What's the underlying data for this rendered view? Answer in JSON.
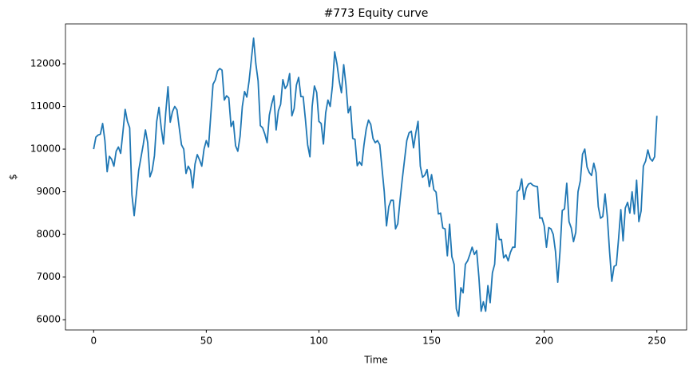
{
  "chart_data": {
    "type": "line",
    "title": "#773 Equity curve",
    "x_label": "Time",
    "y_label": "$",
    "color": "#1f77b4",
    "xlim": [
      -12.5,
      263.2
    ],
    "ylim": [
      5760,
      12935
    ],
    "xticks": [
      0,
      50,
      100,
      150,
      200,
      250
    ],
    "yticks": [
      6000,
      7000,
      8000,
      9000,
      10000,
      11000,
      12000
    ],
    "grid": false,
    "x": [
      0,
      1,
      2,
      3,
      4,
      5,
      6,
      7,
      8,
      9,
      10,
      11,
      12,
      13,
      14,
      15,
      16,
      17,
      18,
      19,
      20,
      21,
      22,
      23,
      24,
      25,
      26,
      27,
      28,
      29,
      30,
      31,
      32,
      33,
      34,
      35,
      36,
      37,
      38,
      39,
      40,
      41,
      42,
      43,
      44,
      45,
      46,
      47,
      48,
      49,
      50,
      51,
      52,
      53,
      54,
      55,
      56,
      57,
      58,
      59,
      60,
      61,
      62,
      63,
      64,
      65,
      66,
      67,
      68,
      69,
      70,
      71,
      72,
      73,
      74,
      75,
      76,
      77,
      78,
      79,
      80,
      81,
      82,
      83,
      84,
      85,
      86,
      87,
      88,
      89,
      90,
      91,
      92,
      93,
      94,
      95,
      96,
      97,
      98,
      99,
      100,
      101,
      102,
      103,
      104,
      105,
      106,
      107,
      108,
      109,
      110,
      111,
      112,
      113,
      114,
      115,
      116,
      117,
      118,
      119,
      120,
      121,
      122,
      123,
      124,
      125,
      126,
      127,
      128,
      129,
      130,
      131,
      132,
      133,
      134,
      135,
      136,
      137,
      138,
      139,
      140,
      141,
      142,
      143,
      144,
      145,
      146,
      147,
      148,
      149,
      150,
      151,
      152,
      153,
      154,
      155,
      156,
      157,
      158,
      159,
      160,
      161,
      162,
      163,
      164,
      165,
      166,
      167,
      168,
      169,
      170,
      171,
      172,
      173,
      174,
      175,
      176,
      177,
      178,
      179,
      180,
      181,
      182,
      183,
      184,
      185,
      186,
      187,
      188,
      189,
      190,
      191,
      192,
      193,
      194,
      195,
      196,
      197,
      198,
      199,
      200,
      201,
      202,
      203,
      204,
      205,
      206,
      207,
      208,
      209,
      210,
      211,
      212,
      213,
      214,
      215,
      216,
      217,
      218,
      219,
      220,
      221,
      222,
      223,
      224,
      225,
      226,
      227,
      228,
      229,
      230,
      231,
      232,
      233,
      234,
      235,
      236,
      237,
      238,
      239,
      240,
      241,
      242,
      243,
      244,
      245,
      246,
      247,
      248,
      249,
      250
    ],
    "values": [
      10000,
      10280,
      10330,
      10350,
      10600,
      10200,
      9470,
      9830,
      9760,
      9600,
      9950,
      10050,
      9900,
      10400,
      10930,
      10650,
      10500,
      8930,
      8440,
      8960,
      9500,
      9800,
      10100,
      10450,
      10150,
      9350,
      9500,
      9850,
      10650,
      10980,
      10500,
      10120,
      10850,
      11460,
      10630,
      10880,
      11000,
      10920,
      10500,
      10100,
      10000,
      9430,
      9600,
      9500,
      9090,
      9650,
      9870,
      9750,
      9600,
      10000,
      10200,
      10050,
      10800,
      11520,
      11620,
      11830,
      11890,
      11850,
      11150,
      11250,
      11200,
      10530,
      10650,
      10080,
      9950,
      10300,
      11000,
      11350,
      11220,
      11600,
      12100,
      12600,
      12000,
      11600,
      10550,
      10500,
      10350,
      10150,
      10800,
      11050,
      11250,
      10450,
      10900,
      11050,
      11630,
      11420,
      11500,
      11770,
      10780,
      10950,
      11500,
      11680,
      11230,
      11230,
      10700,
      10100,
      9820,
      11000,
      11480,
      11330,
      10650,
      10600,
      10120,
      10850,
      11150,
      11000,
      11480,
      12280,
      12000,
      11600,
      11320,
      11980,
      11500,
      10850,
      11000,
      10250,
      10230,
      9610,
      9700,
      9620,
      10100,
      10470,
      10680,
      10580,
      10250,
      10150,
      10200,
      10100,
      9550,
      9000,
      8200,
      8650,
      8800,
      8800,
      8130,
      8250,
      8800,
      9300,
      9750,
      10200,
      10380,
      10420,
      10030,
      10380,
      10650,
      9600,
      9340,
      9390,
      9520,
      9120,
      9400,
      9050,
      8990,
      8480,
      8500,
      8150,
      8130,
      7500,
      8240,
      7480,
      7300,
      6250,
      6080,
      6750,
      6630,
      7300,
      7380,
      7530,
      7700,
      7530,
      7620,
      7000,
      6200,
      6420,
      6200,
      6800,
      6400,
      7100,
      7300,
      8250,
      7880,
      7880,
      7450,
      7520,
      7380,
      7580,
      7700,
      7700,
      9000,
      9050,
      9300,
      8820,
      9080,
      9180,
      9200,
      9150,
      9130,
      9120,
      8380,
      8390,
      8200,
      7700,
      8160,
      8130,
      8000,
      7600,
      6880,
      7600,
      8560,
      8600,
      9200,
      8300,
      8150,
      7830,
      8050,
      9000,
      9250,
      9880,
      10000,
      9580,
      9450,
      9380,
      9670,
      9450,
      8650,
      8380,
      8420,
      8950,
      8420,
      7600,
      6900,
      7250,
      7280,
      7900,
      8580,
      7850,
      8620,
      8750,
      8500,
      9000,
      8480,
      9270,
      8300,
      8550,
      9600,
      9720,
      9980,
      9780,
      9720,
      9820,
      10780
    ]
  }
}
